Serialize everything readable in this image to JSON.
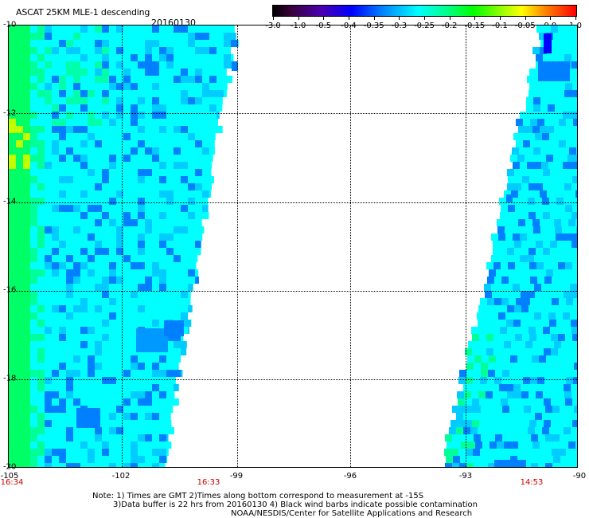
{
  "header": {
    "title": "ASCAT 25KM MLE-1 descending",
    "date": "20160130"
  },
  "colorbar": {
    "labels": [
      "-3.0",
      "-1.0",
      "-0.5",
      "-0.4",
      "-0.35",
      "-0.3",
      "-0.25",
      "-0.2",
      "-0.15",
      "-0.1",
      "-0.05",
      "0.0",
      "1.0"
    ]
  },
  "map": {
    "lat_labels": [
      "-10",
      "-12",
      "-14",
      "-16",
      "-18",
      "-20"
    ],
    "lon_labels": [
      "-105",
      "-102",
      "-99",
      "-96",
      "-93",
      "-90"
    ],
    "colors": {
      "background": "#ffffff",
      "cyan": "#00ffff",
      "blue": "#0080ff",
      "deep_blue": "#0000ff",
      "green": "#00ff66",
      "yellow_green": "#c0ff00"
    }
  },
  "times": {
    "left": "16:34",
    "middle": "16:33",
    "right": "14:53"
  },
  "notes": {
    "line1": "Note: 1) Times are GMT 2)Times along bottom correspond to measurement at -15S",
    "line2": "3)Data buffer is 22 hrs from 20160130 4) Black wind barbs indicate possible contamination",
    "line3": "NOAA/NESDIS/Center for Satellite Applications and Research"
  }
}
